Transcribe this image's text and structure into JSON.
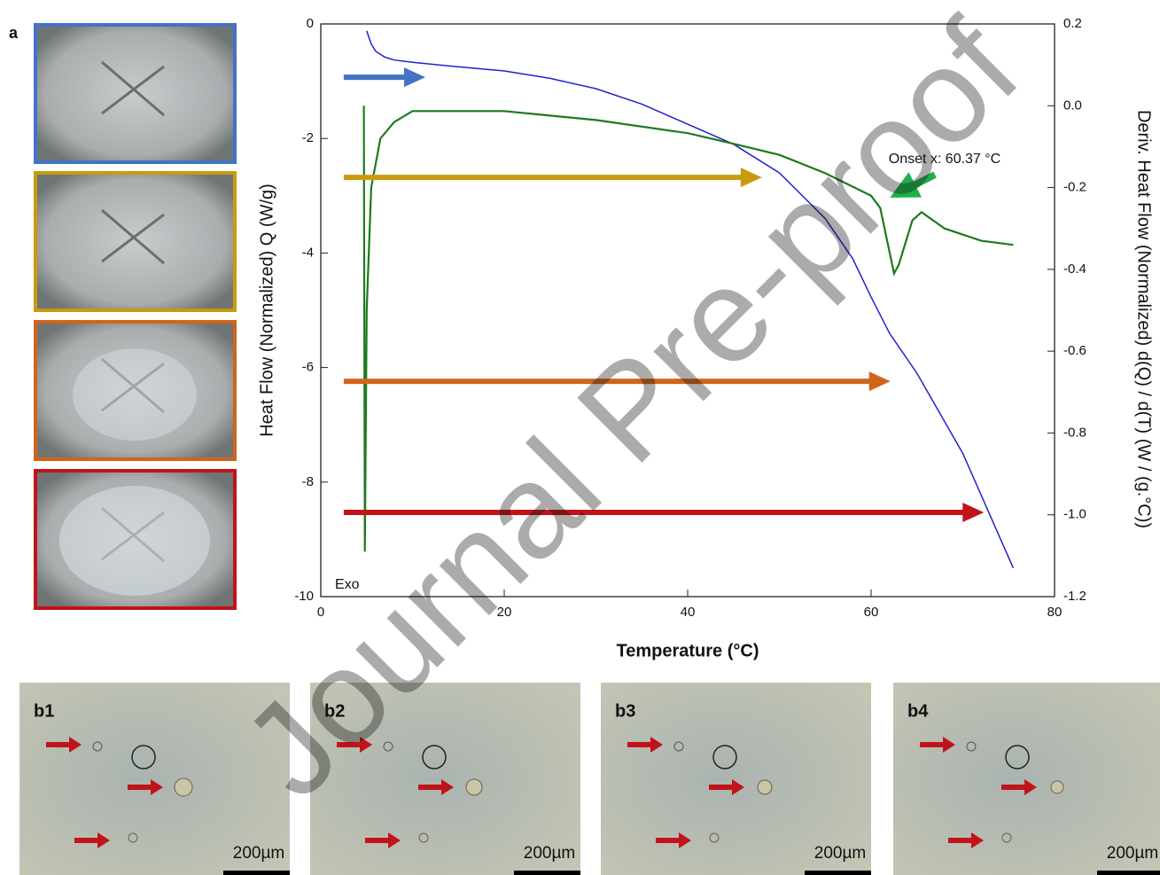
{
  "chart_data": {
    "type": "line",
    "xlabel": "Temperature (°C)",
    "ylabel": "Heat Flow (Normalized) Q (W/g)",
    "y2label": "Deriv. Heat Flow (Normalized) d(Q) / d(T) (W / (g.°C))",
    "xlim": [
      0,
      80
    ],
    "xticks": [
      0,
      20,
      40,
      60,
      80
    ],
    "ylim": [
      -10,
      0
    ],
    "yticks": [
      -10,
      -8,
      -6,
      -4,
      -2,
      0
    ],
    "y2lim": [
      -1.2,
      0.2
    ],
    "y2ticks": [
      {
        "value": -1.2,
        "label": "-1.2"
      },
      {
        "value": -1,
        "label": "-1.0"
      },
      -0.8,
      -0.6,
      -0.4,
      -0.2,
      {
        "value": 0,
        "label": "0.0"
      },
      0.2
    ],
    "ylabel_color": "#1a1aff",
    "y2label_color": "#13881a",
    "series": [
      {
        "color": "#2020d0",
        "x": [
          5,
          5.5,
          6,
          7,
          8,
          10,
          15,
          20,
          25,
          30,
          35,
          40,
          45,
          50,
          55,
          58,
          60,
          62,
          65,
          70,
          75.5
        ],
        "values": [
          -0.12,
          -0.35,
          -0.48,
          -0.58,
          -0.63,
          -0.67,
          -0.75,
          -0.82,
          -0.95,
          -1.13,
          -1.4,
          -1.75,
          -2.1,
          -2.6,
          -3.4,
          -4.1,
          -4.77,
          -5.4,
          -6.1,
          -7.5,
          -9.5
        ]
      },
      {
        "color": "#1d7a1d",
        "axis": "y2",
        "x": [
          4.7,
          4.8,
          5,
          5.5,
          6.5,
          8,
          10,
          20,
          30,
          40,
          45,
          50,
          55,
          60,
          61,
          62.5,
          63,
          64.5,
          65.5,
          68,
          72,
          75.5
        ],
        "values": [
          0,
          -1.09,
          -0.5,
          -0.2,
          -0.08,
          -0.04,
          -0.013,
          -0.013,
          -0.035,
          -0.067,
          -0.093,
          -0.12,
          -0.165,
          -0.22,
          -0.25,
          -0.41,
          -0.39,
          -0.28,
          -0.26,
          -0.3,
          -0.33,
          -0.34
        ]
      }
    ],
    "arrows": [
      {
        "color": "#4472c4",
        "y": -0.93,
        "x_start": 2.5,
        "x_end": 11.4
      },
      {
        "color": "#c89b0f",
        "y": -2.68,
        "x_start": 2.5,
        "x_end": 48.1
      },
      {
        "color": "#d0651a",
        "y": -6.24,
        "x_start": 2.5,
        "x_end": 62.1
      },
      {
        "color": "#c0141a",
        "y": -8.53,
        "x_start": 2.5,
        "x_end": 72.3
      }
    ],
    "annotations": [
      "Onset x: 60.37 °C",
      "Exo"
    ]
  },
  "figure": {
    "panel_label": "a",
    "watermark": "Journal Pre-proof",
    "micrographs": [
      {
        "label": "b1",
        "scale": "200µm"
      },
      {
        "label": "b2",
        "scale": "200µm"
      },
      {
        "label": "b3",
        "scale": "200µm"
      },
      {
        "label": "b4",
        "scale": "200µm"
      }
    ]
  }
}
